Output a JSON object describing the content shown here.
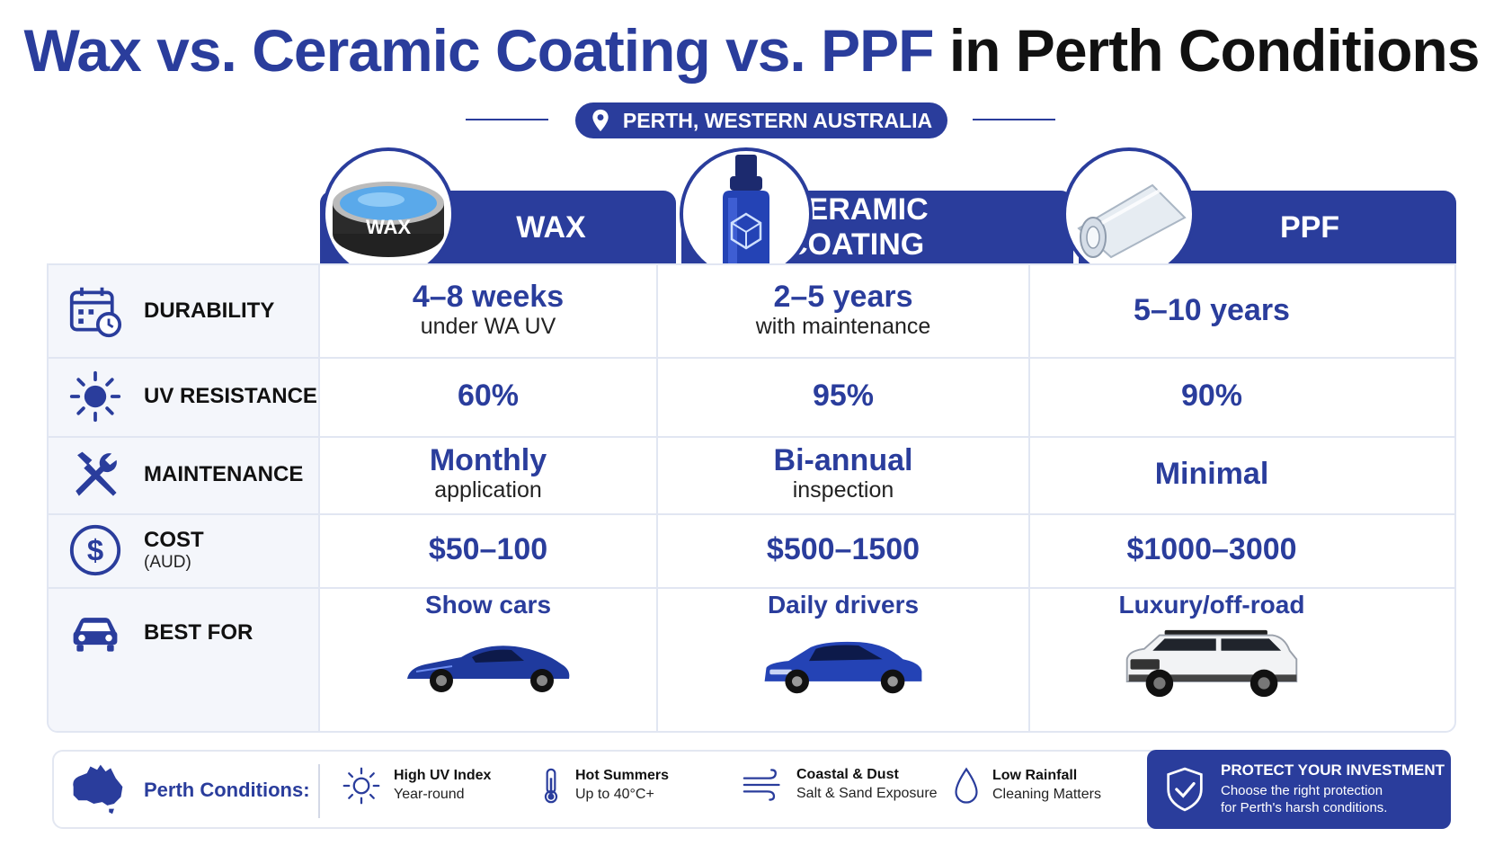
{
  "title": {
    "part_blue": "Wax vs. Ceramic Coating vs. PPF",
    "part_dark": "in Perth Conditions"
  },
  "location": {
    "label": "PERTH, WESTERN AUSTRALIA",
    "icon": "map-pin-icon"
  },
  "columns": [
    {
      "name": "WAX",
      "badge_text": "WAX",
      "image": "wax-tin-image"
    },
    {
      "name": "CERAMIC COATING",
      "image": "ceramic-bottle-image"
    },
    {
      "name": "PPF",
      "image": "ppf-film-roll-image"
    }
  ],
  "rows": {
    "durability": {
      "label": "DURABILITY",
      "icon": "calendar-clock-icon",
      "values": [
        {
          "main": "4–8 weeks",
          "sub": "under WA UV"
        },
        {
          "main": "2–5 years",
          "sub": "with maintenance"
        },
        {
          "main": "5–10 years",
          "sub": ""
        }
      ]
    },
    "uv": {
      "label": "UV RESISTANCE",
      "icon": "sun-icon",
      "values": [
        {
          "main": "60%"
        },
        {
          "main": "95%"
        },
        {
          "main": "90%"
        }
      ]
    },
    "maintenance": {
      "label": "MAINTENANCE",
      "icon": "tools-icon",
      "values": [
        {
          "main": "Monthly",
          "sub": "application"
        },
        {
          "main": "Bi-annual",
          "sub": "inspection"
        },
        {
          "main": "Minimal",
          "sub": ""
        }
      ]
    },
    "cost": {
      "label": "COST",
      "sublabel": "(AUD)",
      "icon": "dollar-icon",
      "values": [
        {
          "main": "$50–100"
        },
        {
          "main": "$500–1500"
        },
        {
          "main": "$1000–3000"
        }
      ]
    },
    "best_for": {
      "label": "BEST FOR",
      "icon": "car-icon",
      "values": [
        {
          "main": "Show cars",
          "image": "blue-sports-car-image"
        },
        {
          "main": "Daily drivers",
          "image": "blue-sedan-image"
        },
        {
          "main": "Luxury/off-road",
          "image": "white-suv-image"
        }
      ]
    }
  },
  "footer": {
    "label": "Perth Conditions:",
    "map_icon": "australia-map-icon",
    "conditions": [
      {
        "title": "High UV Index",
        "sub": "Year-round",
        "icon": "sun-icon"
      },
      {
        "title": "Hot Summers",
        "sub": "Up to 40°C+",
        "icon": "thermometer-icon"
      },
      {
        "title": "Coastal & Dust",
        "sub": "Salt & Sand Exposure",
        "icon": "wind-icon"
      },
      {
        "title": "Low Rainfall",
        "sub": "Cleaning Matters",
        "icon": "water-drop-icon"
      }
    ],
    "protect": {
      "title": "PROTECT YOUR INVESTMENT",
      "line1": "Choose the right protection",
      "line2": "for Perth's harsh conditions.",
      "icon": "shield-check-icon"
    }
  },
  "colors": {
    "brand_blue": "#2a3d9c",
    "text_dark": "#111111",
    "grid": "#e1e6f2"
  }
}
